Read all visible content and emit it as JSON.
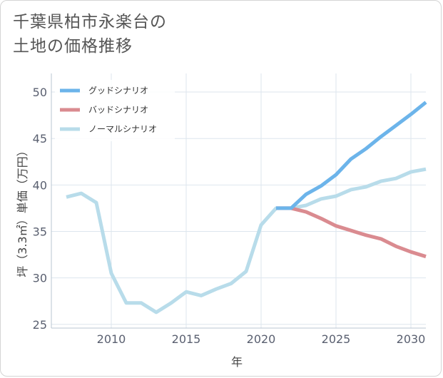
{
  "title_lines": [
    "千葉県柏市永楽台の",
    "土地の価格推移"
  ],
  "chart_data": {
    "type": "line",
    "xlabel": "年",
    "ylabel": "坪（3.3㎡）単価（万円）",
    "xlim": [
      2006.0,
      2031.0
    ],
    "ylim": [
      24.6,
      52.0
    ],
    "xticks": [
      2010,
      2015,
      2020,
      2025,
      2030
    ],
    "yticks": [
      25,
      30,
      35,
      40,
      45,
      50
    ],
    "grid": true,
    "legend_position": "top-left",
    "series": [
      {
        "name": "グッドシナリオ",
        "color": "#6cb4ea",
        "x": [
          2021,
          2022,
          2023,
          2024,
          2025,
          2026,
          2027,
          2028,
          2029,
          2030,
          2031
        ],
        "y": [
          37.5,
          37.5,
          39.0,
          39.9,
          41.1,
          42.8,
          43.9,
          45.2,
          46.4,
          47.6,
          48.9
        ]
      },
      {
        "name": "バッドシナリオ",
        "color": "#da8b90",
        "x": [
          2021,
          2022,
          2023,
          2024,
          2025,
          2026,
          2027,
          2028,
          2029,
          2030,
          2031
        ],
        "y": [
          37.5,
          37.5,
          37.1,
          36.4,
          35.6,
          35.1,
          34.6,
          34.2,
          33.4,
          32.8,
          32.3
        ]
      },
      {
        "name": "ノーマルシナリオ",
        "color": "#b8dcea",
        "x": [
          2007,
          2008,
          2009,
          2010,
          2011,
          2012,
          2013,
          2014,
          2015,
          2016,
          2017,
          2018,
          2019,
          2020,
          2021,
          2022,
          2023,
          2024,
          2025,
          2026,
          2027,
          2028,
          2029,
          2030,
          2031
        ],
        "y": [
          38.7,
          39.1,
          38.1,
          30.5,
          27.3,
          27.3,
          26.3,
          27.3,
          28.5,
          28.1,
          28.8,
          29.4,
          30.7,
          35.7,
          37.5,
          37.5,
          37.8,
          38.5,
          38.8,
          39.5,
          39.8,
          40.4,
          40.7,
          41.4,
          41.7
        ]
      }
    ]
  }
}
